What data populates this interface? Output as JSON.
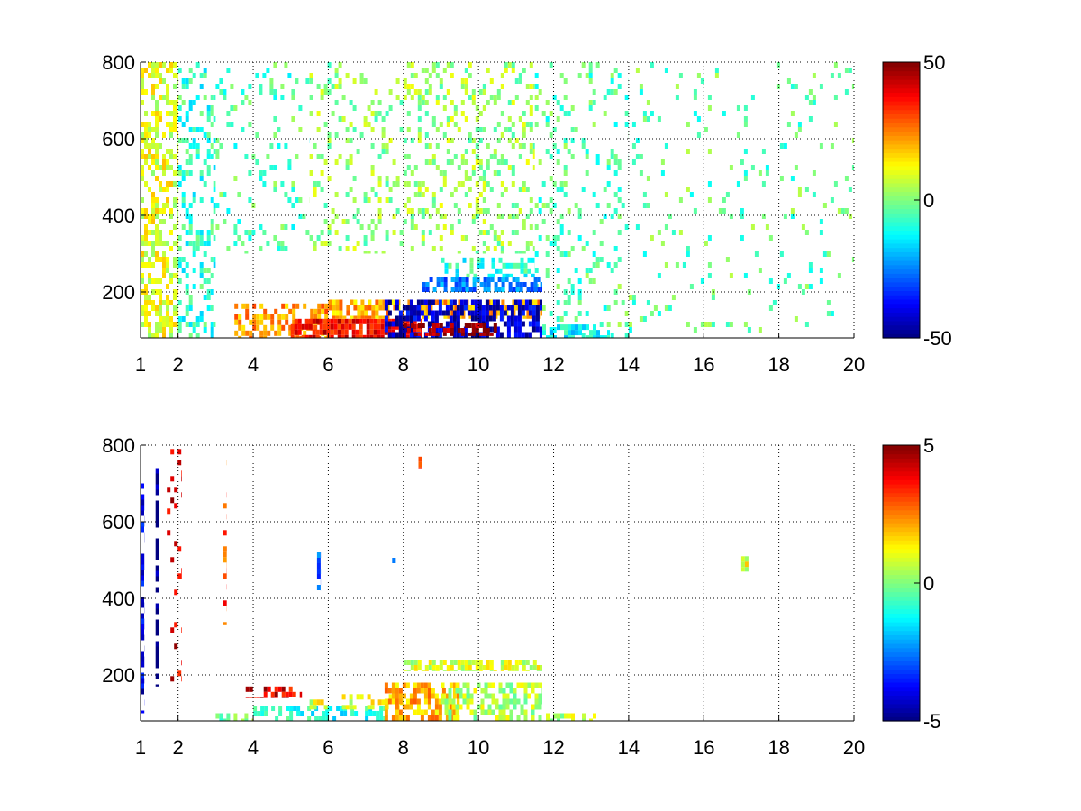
{
  "figure": {
    "background": "#ffffff"
  },
  "chart_data": [
    {
      "type": "heatmap",
      "title": "",
      "xlabel": "",
      "ylabel": "",
      "xlim": [
        1,
        20
      ],
      "ylim": [
        80,
        800
      ],
      "xticks": [
        1,
        2,
        4,
        6,
        8,
        10,
        12,
        14,
        16,
        18,
        20
      ],
      "yticks": [
        200,
        400,
        600,
        800
      ],
      "grid": true,
      "colorscale": "jet",
      "clim": [
        -50,
        50
      ],
      "colorbar_ticks": [
        -50,
        0,
        50
      ],
      "regions": [
        {
          "x": [
            1.0,
            2.0
          ],
          "y": [
            80,
            800
          ],
          "value": 10,
          "coverage": 0.5
        },
        {
          "x": [
            2.0,
            3.0
          ],
          "y": [
            80,
            800
          ],
          "value": -8,
          "coverage": 0.3
        },
        {
          "x": [
            3.0,
            5.5
          ],
          "y": [
            300,
            800
          ],
          "value": -5,
          "coverage": 0.12
        },
        {
          "x": [
            5.5,
            8.0
          ],
          "y": [
            300,
            800
          ],
          "value": 2,
          "coverage": 0.18
        },
        {
          "x": [
            8.0,
            11.5
          ],
          "y": [
            300,
            800
          ],
          "value": 3,
          "coverage": 0.26
        },
        {
          "x": [
            11.5,
            14.0
          ],
          "y": [
            80,
            800
          ],
          "value": -4,
          "coverage": 0.16
        },
        {
          "x": [
            14.0,
            20.0
          ],
          "y": [
            80,
            800
          ],
          "value": -3,
          "coverage": 0.07
        },
        {
          "x": [
            3.5,
            6.0
          ],
          "y": [
            80,
            170
          ],
          "value": 22,
          "coverage": 0.55
        },
        {
          "x": [
            5.0,
            8.5
          ],
          "y": [
            80,
            130
          ],
          "value": 38,
          "coverage": 0.8
        },
        {
          "x": [
            6.0,
            11.7
          ],
          "y": [
            130,
            180
          ],
          "value": 20,
          "coverage": 0.6
        },
        {
          "x": [
            7.5,
            11.7
          ],
          "y": [
            80,
            180
          ],
          "value": -42,
          "coverage": 0.6
        },
        {
          "x": [
            8.0,
            10.5
          ],
          "y": [
            85,
            120
          ],
          "value": 48,
          "coverage": 0.55
        },
        {
          "x": [
            8.5,
            11.7
          ],
          "y": [
            200,
            240
          ],
          "value": -25,
          "coverage": 0.65
        },
        {
          "x": [
            9.0,
            11.5
          ],
          "y": [
            240,
            290
          ],
          "value": -8,
          "coverage": 0.45
        },
        {
          "x": [
            11.7,
            13.5
          ],
          "y": [
            80,
            115
          ],
          "value": -12,
          "coverage": 0.6
        }
      ]
    },
    {
      "type": "heatmap",
      "title": "",
      "xlabel": "",
      "ylabel": "",
      "xlim": [
        1,
        20
      ],
      "ylim": [
        80,
        800
      ],
      "xticks": [
        1,
        2,
        4,
        6,
        8,
        10,
        12,
        14,
        16,
        18,
        20
      ],
      "yticks": [
        200,
        400,
        600,
        800
      ],
      "grid": true,
      "colorscale": "jet",
      "clim": [
        -5,
        5
      ],
      "colorbar_ticks": [
        -5,
        0,
        5
      ],
      "regions": [
        {
          "x": [
            1.0,
            1.1
          ],
          "y": [
            100,
            700
          ],
          "value": -4,
          "coverage": 0.5
        },
        {
          "x": [
            1.4,
            1.5
          ],
          "y": [
            170,
            740
          ],
          "value": -5,
          "coverage": 0.6
        },
        {
          "x": [
            1.7,
            2.1
          ],
          "y": [
            180,
            790
          ],
          "value": 4,
          "coverage": 0.12
        },
        {
          "x": [
            3.2,
            3.3
          ],
          "y": [
            330,
            790
          ],
          "value": 3,
          "coverage": 0.25
        },
        {
          "x": [
            5.7,
            5.8
          ],
          "y": [
            420,
            520
          ],
          "value": -3,
          "coverage": 0.7
        },
        {
          "x": [
            3.0,
            4.0
          ],
          "y": [
            80,
            100
          ],
          "value": 0,
          "coverage": 0.6
        },
        {
          "x": [
            3.8,
            5.3
          ],
          "y": [
            140,
            170
          ],
          "value": 4,
          "coverage": 0.6
        },
        {
          "x": [
            4.0,
            7.5
          ],
          "y": [
            80,
            120
          ],
          "value": -1,
          "coverage": 0.55
        },
        {
          "x": [
            5.5,
            8.0
          ],
          "y": [
            110,
            150
          ],
          "value": 1,
          "coverage": 0.45
        },
        {
          "x": [
            7.5,
            9.5
          ],
          "y": [
            80,
            180
          ],
          "value": 2,
          "coverage": 0.65
        },
        {
          "x": [
            9.0,
            11.7
          ],
          "y": [
            80,
            180
          ],
          "value": 0.5,
          "coverage": 0.55
        },
        {
          "x": [
            8.0,
            11.7
          ],
          "y": [
            210,
            240
          ],
          "value": 0.8,
          "coverage": 0.7
        },
        {
          "x": [
            11.7,
            13.2
          ],
          "y": [
            80,
            100
          ],
          "value": 0.5,
          "coverage": 0.45
        },
        {
          "x": [
            7.7,
            7.8
          ],
          "y": [
            490,
            520
          ],
          "value": -3,
          "coverage": 0.8
        },
        {
          "x": [
            8.4,
            8.5
          ],
          "y": [
            740,
            770
          ],
          "value": 3,
          "coverage": 0.8
        },
        {
          "x": [
            17.0,
            17.2
          ],
          "y": [
            470,
            510
          ],
          "value": 1,
          "coverage": 0.8
        }
      ]
    }
  ]
}
